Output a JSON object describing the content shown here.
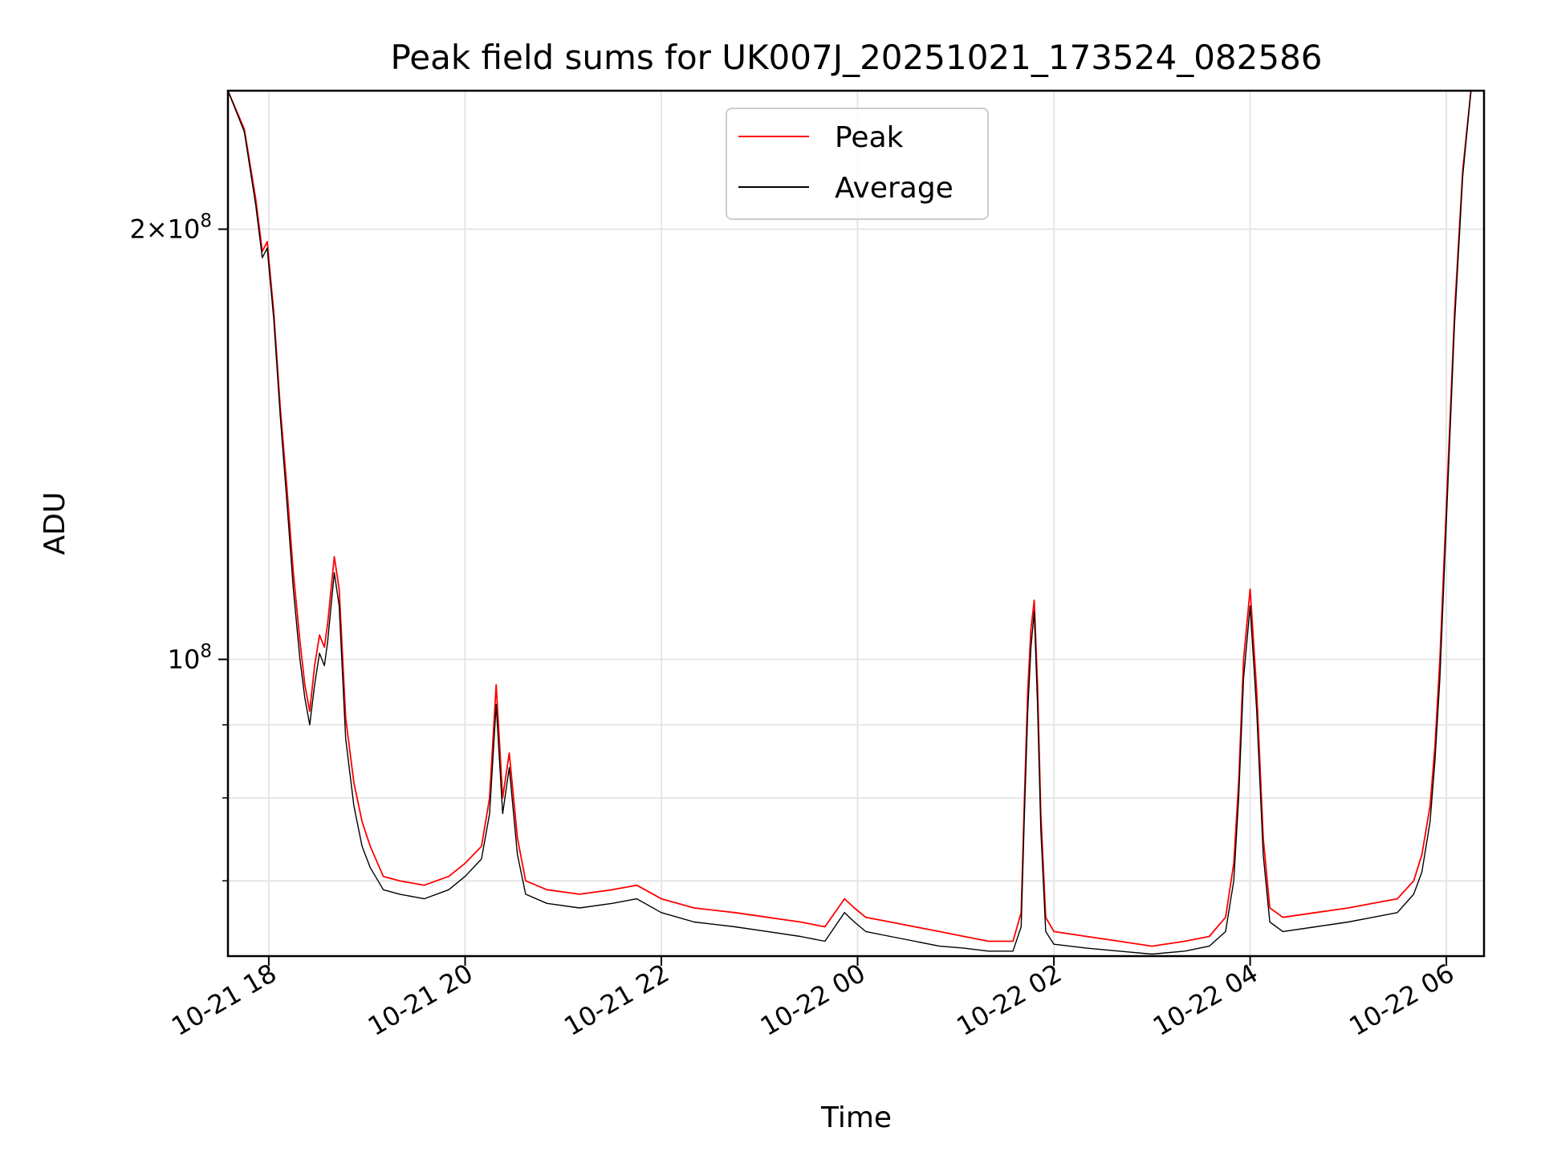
{
  "chart_data": {
    "type": "line",
    "title": "Peak field sums for UK007J_20251021_173524_082586",
    "xlabel": "Time",
    "ylabel": "ADU",
    "y_scale": "log",
    "grid": true,
    "legend_position": "upper center",
    "x_range": [
      "2025-10-21 17:35",
      "2025-10-22 06:23"
    ],
    "ylim": [
      62000000,
      250000000
    ],
    "x_ticks": [
      {
        "x": "2025-10-21 18:00",
        "label": "10-21 18"
      },
      {
        "x": "2025-10-21 20:00",
        "label": "10-21 20"
      },
      {
        "x": "2025-10-21 22:00",
        "label": "10-21 22"
      },
      {
        "x": "2025-10-22 00:00",
        "label": "10-22 00"
      },
      {
        "x": "2025-10-22 02:00",
        "label": "10-22 02"
      },
      {
        "x": "2025-10-22 04:00",
        "label": "10-22 04"
      },
      {
        "x": "2025-10-22 06:00",
        "label": "10-22 06"
      }
    ],
    "y_major_ticks": [
      {
        "y": 200000000,
        "mantissa": "2",
        "exponent": "8"
      },
      {
        "y": 100000000,
        "mantissa": "",
        "exponent": "8"
      }
    ],
    "y_minor_ticks": [
      70000000,
      80000000,
      90000000
    ],
    "series": [
      {
        "name": "Peak",
        "color": "#ff0000",
        "points": [
          [
            "2025-10-21 17:35",
            250000000
          ],
          [
            "2025-10-21 17:45",
            235000000
          ],
          [
            "2025-10-21 17:52",
            210000000
          ],
          [
            "2025-10-21 17:56",
            193000000
          ],
          [
            "2025-10-21 17:59",
            196000000
          ],
          [
            "2025-10-21 18:03",
            175000000
          ],
          [
            "2025-10-21 18:07",
            150000000
          ],
          [
            "2025-10-21 18:11",
            132000000
          ],
          [
            "2025-10-21 18:15",
            115000000
          ],
          [
            "2025-10-21 18:19",
            103000000
          ],
          [
            "2025-10-21 18:22",
            96000000
          ],
          [
            "2025-10-21 18:25",
            92000000
          ],
          [
            "2025-10-21 18:28",
            99000000
          ],
          [
            "2025-10-21 18:31",
            104000000
          ],
          [
            "2025-10-21 18:34",
            102000000
          ],
          [
            "2025-10-21 18:36",
            106000000
          ],
          [
            "2025-10-21 18:40",
            118000000
          ],
          [
            "2025-10-21 18:43",
            112000000
          ],
          [
            "2025-10-21 18:47",
            91000000
          ],
          [
            "2025-10-21 18:52",
            82000000
          ],
          [
            "2025-10-21 18:57",
            77000000
          ],
          [
            "2025-10-21 19:02",
            74000000
          ],
          [
            "2025-10-21 19:10",
            70500000
          ],
          [
            "2025-10-21 19:20",
            70000000
          ],
          [
            "2025-10-21 19:35",
            69500000
          ],
          [
            "2025-10-21 19:50",
            70500000
          ],
          [
            "2025-10-21 20:00",
            72000000
          ],
          [
            "2025-10-21 20:10",
            74000000
          ],
          [
            "2025-10-21 20:15",
            80000000
          ],
          [
            "2025-10-21 20:19",
            96000000
          ],
          [
            "2025-10-21 20:23",
            80000000
          ],
          [
            "2025-10-21 20:27",
            86000000
          ],
          [
            "2025-10-21 20:32",
            75000000
          ],
          [
            "2025-10-21 20:37",
            70000000
          ],
          [
            "2025-10-21 20:50",
            69000000
          ],
          [
            "2025-10-21 21:10",
            68500000
          ],
          [
            "2025-10-21 21:30",
            69000000
          ],
          [
            "2025-10-21 21:45",
            69500000
          ],
          [
            "2025-10-21 22:00",
            68000000
          ],
          [
            "2025-10-21 22:20",
            67000000
          ],
          [
            "2025-10-21 22:45",
            66500000
          ],
          [
            "2025-10-21 23:05",
            66000000
          ],
          [
            "2025-10-21 23:25",
            65500000
          ],
          [
            "2025-10-21 23:40",
            65000000
          ],
          [
            "2025-10-21 23:52",
            68000000
          ],
          [
            "2025-10-21 23:58",
            67000000
          ],
          [
            "2025-10-22 00:05",
            66000000
          ],
          [
            "2025-10-22 00:20",
            65500000
          ],
          [
            "2025-10-22 00:35",
            65000000
          ],
          [
            "2025-10-22 00:50",
            64500000
          ],
          [
            "2025-10-22 01:05",
            64000000
          ],
          [
            "2025-10-22 01:20",
            63500000
          ],
          [
            "2025-10-22 01:35",
            63500000
          ],
          [
            "2025-10-22 01:40",
            66500000
          ],
          [
            "2025-10-22 01:42",
            80000000
          ],
          [
            "2025-10-22 01:44",
            95000000
          ],
          [
            "2025-10-22 01:46",
            105000000
          ],
          [
            "2025-10-22 01:48",
            110000000
          ],
          [
            "2025-10-22 01:50",
            96000000
          ],
          [
            "2025-10-22 01:52",
            78000000
          ],
          [
            "2025-10-22 01:55",
            66000000
          ],
          [
            "2025-10-22 02:00",
            64500000
          ],
          [
            "2025-10-22 02:20",
            64000000
          ],
          [
            "2025-10-22 02:40",
            63500000
          ],
          [
            "2025-10-22 03:00",
            63000000
          ],
          [
            "2025-10-22 03:20",
            63500000
          ],
          [
            "2025-10-22 03:35",
            64000000
          ],
          [
            "2025-10-22 03:45",
            66000000
          ],
          [
            "2025-10-22 03:50",
            72000000
          ],
          [
            "2025-10-22 03:53",
            82000000
          ],
          [
            "2025-10-22 03:56",
            100000000
          ],
          [
            "2025-10-22 04:00",
            112000000
          ],
          [
            "2025-10-22 04:04",
            95000000
          ],
          [
            "2025-10-22 04:08",
            75000000
          ],
          [
            "2025-10-22 04:12",
            67000000
          ],
          [
            "2025-10-22 04:20",
            66000000
          ],
          [
            "2025-10-22 04:40",
            66500000
          ],
          [
            "2025-10-22 05:00",
            67000000
          ],
          [
            "2025-10-22 05:15",
            67500000
          ],
          [
            "2025-10-22 05:30",
            68000000
          ],
          [
            "2025-10-22 05:40",
            70000000
          ],
          [
            "2025-10-22 05:45",
            73000000
          ],
          [
            "2025-10-22 05:50",
            79000000
          ],
          [
            "2025-10-22 05:53",
            87000000
          ],
          [
            "2025-10-22 05:56",
            100000000
          ],
          [
            "2025-10-22 06:00",
            128000000
          ],
          [
            "2025-10-22 06:05",
            175000000
          ],
          [
            "2025-10-22 06:10",
            220000000
          ],
          [
            "2025-10-22 06:15",
            250000000
          ],
          [
            "2025-10-22 06:23",
            250000000
          ]
        ]
      },
      {
        "name": "Average",
        "color": "#000000",
        "points": [
          [
            "2025-10-21 17:35",
            250000000
          ],
          [
            "2025-10-21 17:45",
            234000000
          ],
          [
            "2025-10-21 17:52",
            208000000
          ],
          [
            "2025-10-21 17:56",
            191000000
          ],
          [
            "2025-10-21 17:59",
            194000000
          ],
          [
            "2025-10-21 18:03",
            173000000
          ],
          [
            "2025-10-21 18:07",
            148000000
          ],
          [
            "2025-10-21 18:11",
            129000000
          ],
          [
            "2025-10-21 18:15",
            112000000
          ],
          [
            "2025-10-21 18:19",
            100000000
          ],
          [
            "2025-10-21 18:22",
            94000000
          ],
          [
            "2025-10-21 18:25",
            90000000
          ],
          [
            "2025-10-21 18:28",
            96000000
          ],
          [
            "2025-10-21 18:31",
            101000000
          ],
          [
            "2025-10-21 18:34",
            99000000
          ],
          [
            "2025-10-21 18:36",
            103000000
          ],
          [
            "2025-10-21 18:40",
            115000000
          ],
          [
            "2025-10-21 18:43",
            109000000
          ],
          [
            "2025-10-21 18:47",
            88000000
          ],
          [
            "2025-10-21 18:52",
            79000000
          ],
          [
            "2025-10-21 18:57",
            74000000
          ],
          [
            "2025-10-21 19:02",
            71500000
          ],
          [
            "2025-10-21 19:10",
            69000000
          ],
          [
            "2025-10-21 19:20",
            68500000
          ],
          [
            "2025-10-21 19:35",
            68000000
          ],
          [
            "2025-10-21 19:50",
            69000000
          ],
          [
            "2025-10-21 20:00",
            70500000
          ],
          [
            "2025-10-21 20:10",
            72500000
          ],
          [
            "2025-10-21 20:15",
            78000000
          ],
          [
            "2025-10-21 20:19",
            93000000
          ],
          [
            "2025-10-21 20:23",
            78000000
          ],
          [
            "2025-10-21 20:27",
            84000000
          ],
          [
            "2025-10-21 20:32",
            73000000
          ],
          [
            "2025-10-21 20:37",
            68500000
          ],
          [
            "2025-10-21 20:50",
            67500000
          ],
          [
            "2025-10-21 21:10",
            67000000
          ],
          [
            "2025-10-21 21:30",
            67500000
          ],
          [
            "2025-10-21 21:45",
            68000000
          ],
          [
            "2025-10-21 22:00",
            66500000
          ],
          [
            "2025-10-21 22:20",
            65500000
          ],
          [
            "2025-10-21 22:45",
            65000000
          ],
          [
            "2025-10-21 23:05",
            64500000
          ],
          [
            "2025-10-21 23:25",
            64000000
          ],
          [
            "2025-10-21 23:40",
            63500000
          ],
          [
            "2025-10-21 23:52",
            66500000
          ],
          [
            "2025-10-21 23:58",
            65500000
          ],
          [
            "2025-10-22 00:05",
            64500000
          ],
          [
            "2025-10-22 00:20",
            64000000
          ],
          [
            "2025-10-22 00:35",
            63500000
          ],
          [
            "2025-10-22 00:50",
            63000000
          ],
          [
            "2025-10-22 01:05",
            62800000
          ],
          [
            "2025-10-22 01:20",
            62500000
          ],
          [
            "2025-10-22 01:35",
            62500000
          ],
          [
            "2025-10-22 01:40",
            65000000
          ],
          [
            "2025-10-22 01:42",
            78000000
          ],
          [
            "2025-10-22 01:44",
            92000000
          ],
          [
            "2025-10-22 01:46",
            102000000
          ],
          [
            "2025-10-22 01:48",
            108000000
          ],
          [
            "2025-10-22 01:50",
            93000000
          ],
          [
            "2025-10-22 01:52",
            76000000
          ],
          [
            "2025-10-22 01:55",
            64500000
          ],
          [
            "2025-10-22 02:00",
            63200000
          ],
          [
            "2025-10-22 02:20",
            62800000
          ],
          [
            "2025-10-22 02:40",
            62500000
          ],
          [
            "2025-10-22 03:00",
            62200000
          ],
          [
            "2025-10-22 03:20",
            62500000
          ],
          [
            "2025-10-22 03:35",
            63000000
          ],
          [
            "2025-10-22 03:45",
            64500000
          ],
          [
            "2025-10-22 03:50",
            70000000
          ],
          [
            "2025-10-22 03:53",
            80000000
          ],
          [
            "2025-10-22 03:56",
            97000000
          ],
          [
            "2025-10-22 04:00",
            109000000
          ],
          [
            "2025-10-22 04:04",
            92000000
          ],
          [
            "2025-10-22 04:08",
            73000000
          ],
          [
            "2025-10-22 04:12",
            65500000
          ],
          [
            "2025-10-22 04:20",
            64500000
          ],
          [
            "2025-10-22 04:40",
            65000000
          ],
          [
            "2025-10-22 05:00",
            65500000
          ],
          [
            "2025-10-22 05:15",
            66000000
          ],
          [
            "2025-10-22 05:30",
            66500000
          ],
          [
            "2025-10-22 05:40",
            68500000
          ],
          [
            "2025-10-22 05:45",
            71000000
          ],
          [
            "2025-10-22 05:50",
            77000000
          ],
          [
            "2025-10-22 05:53",
            85000000
          ],
          [
            "2025-10-22 05:56",
            97000000
          ],
          [
            "2025-10-22 06:00",
            125000000
          ],
          [
            "2025-10-22 06:05",
            172000000
          ],
          [
            "2025-10-22 06:10",
            218000000
          ],
          [
            "2025-10-22 06:15",
            250000000
          ],
          [
            "2025-10-22 06:23",
            250000000
          ]
        ]
      }
    ]
  }
}
